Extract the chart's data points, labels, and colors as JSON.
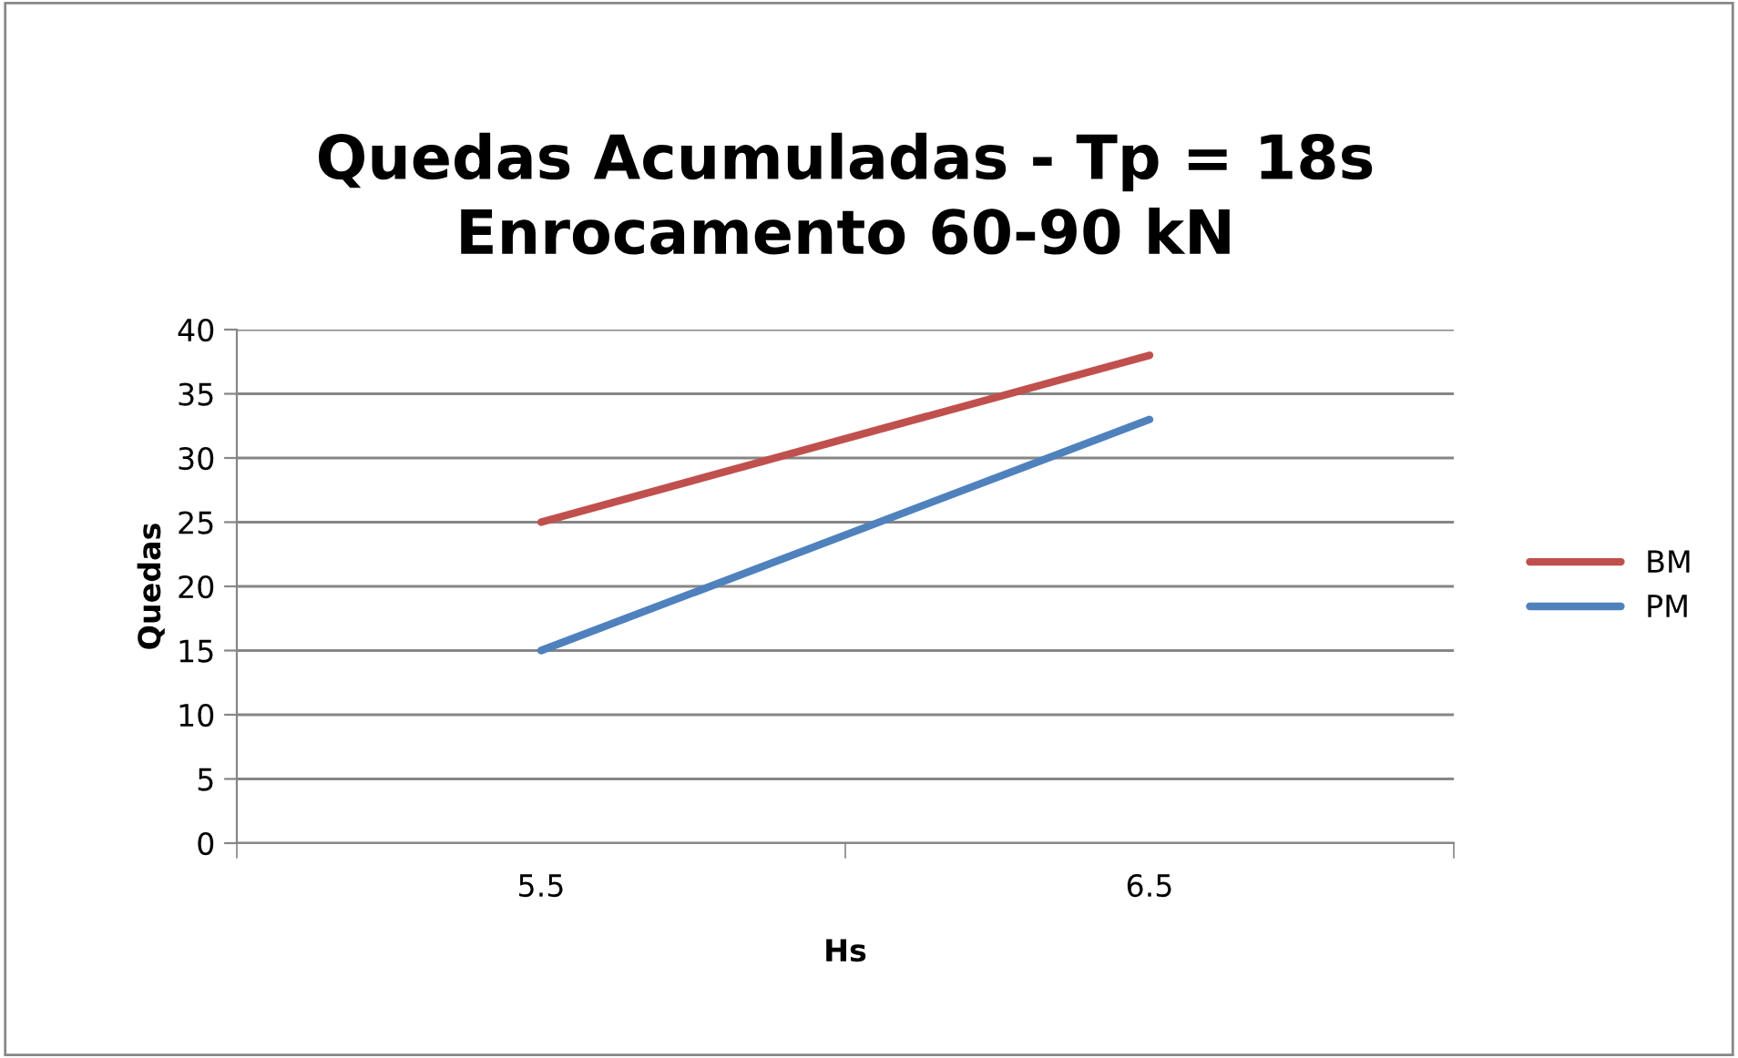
{
  "chart_data": {
    "type": "line",
    "title": "Quedas Acumuladas - Tp = 18s\nEnrocamento 60-90 kN",
    "xlabel": "Hs",
    "ylabel": "Quedas",
    "categories": [
      "5.5",
      "6.5"
    ],
    "series": [
      {
        "name": "BM",
        "color": "#c0504d",
        "values": [
          25,
          38
        ]
      },
      {
        "name": "PM",
        "color": "#4f81bd",
        "values": [
          15,
          33
        ]
      }
    ],
    "ylim": [
      0,
      40
    ],
    "yticks": [
      0,
      5,
      10,
      15,
      20,
      25,
      30,
      35,
      40
    ],
    "grid": "y",
    "legend": "right",
    "marker": "none",
    "line_style": "solid"
  }
}
